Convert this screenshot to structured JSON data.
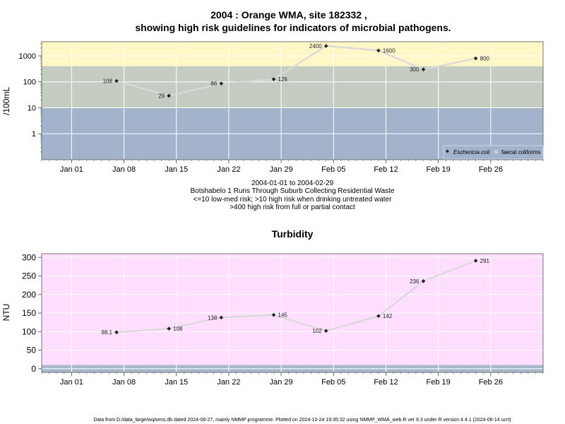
{
  "colors": {
    "high_band": "#fff7c5",
    "mid_band": "#c5cdc2",
    "low_band": "#a3b3cb",
    "turbidity_bg": "#ffdeff",
    "turbidity_base": "#a9b9cd",
    "line": "#d8d8d8",
    "grid": "#ffffff",
    "marker": "#222222"
  },
  "chart_data": [
    {
      "type": "line",
      "title": "2004 : Orange WMA, site 182332 ,",
      "subtitle": "showing high risk guidelines for indicators of microbial pathogens.",
      "ylabel": "/100mL",
      "xlabel": "",
      "yscale": "log",
      "ylim": [
        0.1,
        3500
      ],
      "xlim": [
        "2003-12-28",
        "2004-03-04"
      ],
      "x_ticks": [
        {
          "date": "2004-01-01",
          "label": "Jan 01"
        },
        {
          "date": "2004-01-08",
          "label": "Jan 08"
        },
        {
          "date": "2004-01-15",
          "label": "Jan 15"
        },
        {
          "date": "2004-01-22",
          "label": "Jan 22"
        },
        {
          "date": "2004-01-29",
          "label": "Jan 29"
        },
        {
          "date": "2004-02-05",
          "label": "Feb 05"
        },
        {
          "date": "2004-02-12",
          "label": "Feb 12"
        },
        {
          "date": "2004-02-19",
          "label": "Feb 19"
        },
        {
          "date": "2004-02-26",
          "label": "Feb 26"
        }
      ],
      "y_ticks": [
        {
          "value": 1,
          "label": "1"
        },
        {
          "value": 10,
          "label": "10"
        },
        {
          "value": 100,
          "label": "100"
        },
        {
          "value": 1000,
          "label": "1000"
        }
      ],
      "bands": [
        {
          "from": 0.1,
          "to": 10,
          "color": "#a3b3cb"
        },
        {
          "from": 10,
          "to": 400,
          "color": "#c5cdc2"
        },
        {
          "from": 400,
          "to": 3500,
          "color": "#fff7c5"
        }
      ],
      "series": [
        {
          "name": "Eschericia coli",
          "points": [
            {
              "x": "2004-01-07",
              "y": 108,
              "label": "108",
              "side": "left"
            },
            {
              "x": "2004-01-14",
              "y": 29,
              "label": "29",
              "side": "left"
            },
            {
              "x": "2004-01-21",
              "y": 86,
              "label": "86",
              "side": "left"
            },
            {
              "x": "2004-01-28",
              "y": 126,
              "label": "126",
              "side": "right"
            },
            {
              "x": "2004-02-04",
              "y": 2400,
              "label": "2400",
              "side": "left"
            },
            {
              "x": "2004-02-11",
              "y": 1600,
              "label": "1600",
              "side": "right"
            },
            {
              "x": "2004-02-17",
              "y": 300,
              "label": "300",
              "side": "left"
            },
            {
              "x": "2004-02-24",
              "y": 800,
              "label": "800",
              "side": "right"
            }
          ]
        },
        {
          "name": "faecal coliforms",
          "points": []
        }
      ],
      "notes": [
        "2004-01-01 to 2004-02-29",
        "Botshabelo 1 Runs Through Suburb Collecting Residential Waste",
        "<=10 low-med risk; >10 high risk when drinking untreated water",
        ">400 high risk from full or partial contact"
      ],
      "legend": "bottom-right",
      "grid": true
    },
    {
      "type": "line",
      "title": "Turbidity",
      "ylabel": "NTU",
      "xlabel": "",
      "ylim": [
        -10,
        310
      ],
      "xlim": [
        "2003-12-28",
        "2004-03-04"
      ],
      "x_ticks": [
        {
          "date": "2004-01-01",
          "label": "Jan 01"
        },
        {
          "date": "2004-01-08",
          "label": "Jan 08"
        },
        {
          "date": "2004-01-15",
          "label": "Jan 15"
        },
        {
          "date": "2004-01-22",
          "label": "Jan 22"
        },
        {
          "date": "2004-01-29",
          "label": "Jan 29"
        },
        {
          "date": "2004-02-05",
          "label": "Feb 05"
        },
        {
          "date": "2004-02-12",
          "label": "Feb 12"
        },
        {
          "date": "2004-02-19",
          "label": "Feb 19"
        },
        {
          "date": "2004-02-26",
          "label": "Feb 26"
        }
      ],
      "y_ticks": [
        {
          "value": 0,
          "label": "0"
        },
        {
          "value": 50,
          "label": "50"
        },
        {
          "value": 100,
          "label": "100"
        },
        {
          "value": 150,
          "label": "150"
        },
        {
          "value": 200,
          "label": "200"
        },
        {
          "value": 250,
          "label": "250"
        },
        {
          "value": 300,
          "label": "300"
        }
      ],
      "bands": [
        {
          "from": -10,
          "to": 10,
          "color": "#a9b9cd"
        },
        {
          "from": 10,
          "to": 310,
          "color": "#ffdeff"
        }
      ],
      "series": [
        {
          "points": [
            {
              "x": "2004-01-07",
              "y": 98.1,
              "label": "98.1",
              "side": "left"
            },
            {
              "x": "2004-01-14",
              "y": 108,
              "label": "108",
              "side": "right"
            },
            {
              "x": "2004-01-21",
              "y": 138,
              "label": "138",
              "side": "left"
            },
            {
              "x": "2004-01-28",
              "y": 145,
              "label": "145",
              "side": "right"
            },
            {
              "x": "2004-02-04",
              "y": 102,
              "label": "102",
              "side": "left"
            },
            {
              "x": "2004-02-11",
              "y": 142,
              "label": "142",
              "side": "right"
            },
            {
              "x": "2004-02-17",
              "y": 236,
              "label": "236",
              "side": "left"
            },
            {
              "x": "2004-02-24",
              "y": 291,
              "label": "291",
              "side": "right"
            }
          ]
        }
      ],
      "grid": true
    }
  ],
  "footer": "Data from D:/data_large/wq/wms.db dated 2024-08-27, mainly NMMP programme. Plotted on 2024-10-24 19:35:32 using NMMP_WMA_web.R ver 9.3 under R version 4.4.1 (2024-06-14 ucrt)"
}
